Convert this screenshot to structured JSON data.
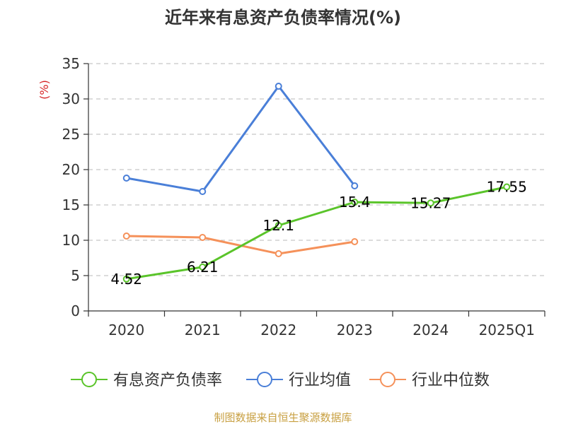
{
  "chart_data": {
    "type": "line",
    "title": "近年来有息资产负债率情况(%)",
    "ylabel": "(%)",
    "xlabel": "",
    "categories": [
      "2020",
      "2021",
      "2022",
      "2023",
      "2024",
      "2025Q1"
    ],
    "ylim": [
      0,
      35
    ],
    "yticks": [
      0,
      5,
      10,
      15,
      20,
      25,
      30,
      35
    ],
    "grid": true,
    "legend_position": "bottom",
    "series": [
      {
        "name": "有息资产负债率",
        "color": "#5ac42a",
        "values": [
          4.52,
          6.21,
          12.1,
          15.4,
          15.27,
          17.55
        ],
        "labels": [
          "4.52",
          "6.21",
          "12.1",
          "15.4",
          "15.27",
          "17.55"
        ]
      },
      {
        "name": "行业均值",
        "color": "#4a7fd8",
        "values": [
          18.8,
          16.9,
          31.8,
          17.7,
          null,
          null
        ]
      },
      {
        "name": "行业中位数",
        "color": "#f5915a",
        "values": [
          10.6,
          10.4,
          8.1,
          9.8,
          null,
          null
        ]
      }
    ],
    "source": "制图数据来自恒生聚源数据库",
    "colors": {
      "ylabel": "#d62728",
      "source": "#c8a042",
      "axis": "#333333",
      "grid": "#c8c8c8"
    }
  }
}
